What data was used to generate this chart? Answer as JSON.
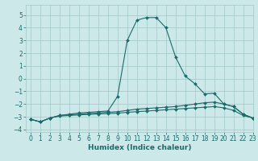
{
  "xlabel": "Humidex (Indice chaleur)",
  "xlim": [
    -0.5,
    23
  ],
  "ylim": [
    -4.2,
    5.8
  ],
  "yticks": [
    -4,
    -3,
    -2,
    -1,
    0,
    1,
    2,
    3,
    4,
    5
  ],
  "xticks": [
    0,
    1,
    2,
    3,
    4,
    5,
    6,
    7,
    8,
    9,
    10,
    11,
    12,
    13,
    14,
    15,
    16,
    17,
    18,
    19,
    20,
    21,
    22,
    23
  ],
  "bg_color": "#cce8e8",
  "grid_color": "#aacccc",
  "line_color": "#1a6b6b",
  "line1_x": [
    0,
    1,
    2,
    3,
    4,
    5,
    6,
    7,
    8,
    9,
    10,
    11,
    12,
    13,
    14,
    15,
    16,
    17,
    18,
    19,
    20,
    21,
    22,
    23
  ],
  "line1_y": [
    -3.2,
    -3.4,
    -3.1,
    -2.9,
    -2.8,
    -2.7,
    -2.65,
    -2.6,
    -2.55,
    -1.4,
    3.0,
    4.6,
    4.8,
    4.8,
    4.0,
    1.7,
    0.2,
    -0.4,
    -1.2,
    -1.15,
    -2.0,
    -2.2,
    -2.8,
    -3.1
  ],
  "line2_x": [
    0,
    1,
    2,
    3,
    4,
    5,
    6,
    7,
    8,
    9,
    10,
    11,
    12,
    13,
    14,
    15,
    16,
    17,
    18,
    19,
    20,
    21,
    22,
    23
  ],
  "line2_y": [
    -3.2,
    -3.4,
    -3.1,
    -2.9,
    -2.85,
    -2.8,
    -2.75,
    -2.7,
    -2.65,
    -2.6,
    -2.5,
    -2.4,
    -2.35,
    -2.3,
    -2.25,
    -2.2,
    -2.1,
    -2.0,
    -1.9,
    -1.85,
    -2.0,
    -2.2,
    -2.8,
    -3.1
  ],
  "line3_x": [
    0,
    1,
    2,
    3,
    4,
    5,
    6,
    7,
    8,
    9,
    10,
    11,
    12,
    13,
    14,
    15,
    16,
    17,
    18,
    19,
    20,
    21,
    22,
    23
  ],
  "line3_y": [
    -3.2,
    -3.4,
    -3.1,
    -2.95,
    -2.9,
    -2.85,
    -2.82,
    -2.78,
    -2.75,
    -2.72,
    -2.65,
    -2.6,
    -2.55,
    -2.5,
    -2.45,
    -2.4,
    -2.35,
    -2.3,
    -2.25,
    -2.2,
    -2.3,
    -2.5,
    -2.9,
    -3.1
  ],
  "tick_fontsize": 5.5,
  "xlabel_fontsize": 6.5,
  "marker_size": 2.0,
  "line_width": 0.8
}
